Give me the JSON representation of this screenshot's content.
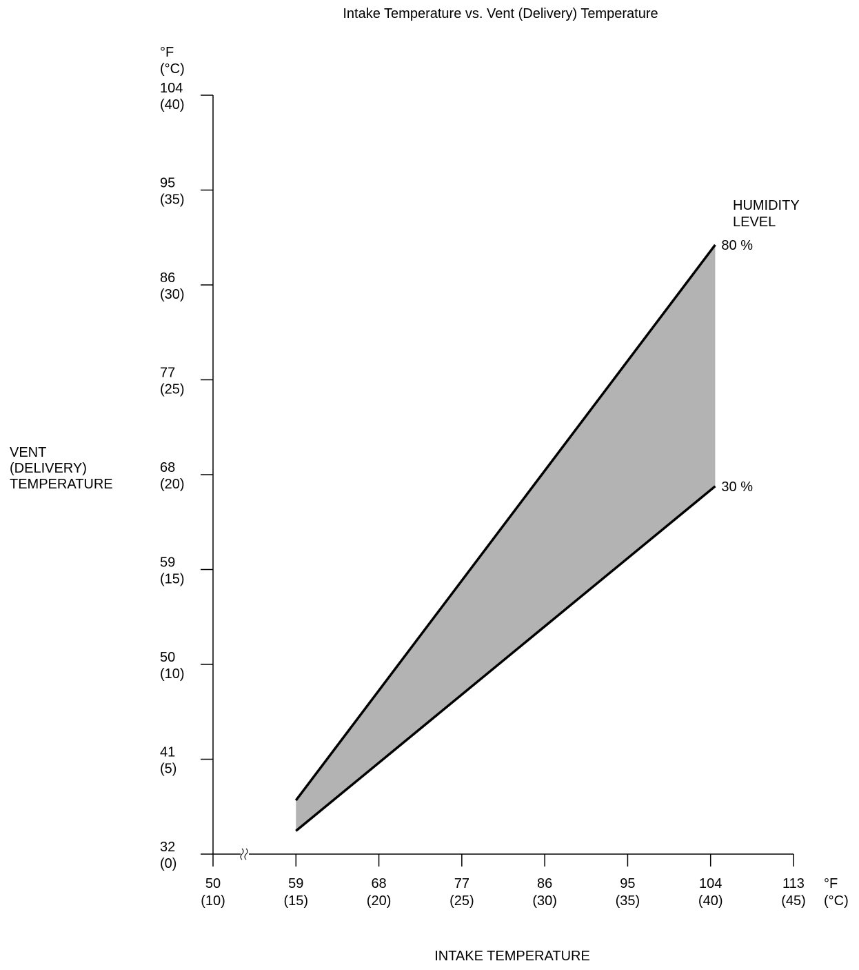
{
  "chart_data": {
    "type": "area",
    "title": "Intake Temperature vs. Vent (Delivery) Temperature",
    "xlabel": "INTAKE TEMPERATURE",
    "ylabel": [
      "VENT",
      "(DELIVERY)",
      "TEMPERATURE"
    ],
    "x_unit": [
      "°F",
      "(°C)"
    ],
    "y_unit": [
      "°F",
      "(°C)"
    ],
    "xlim": [
      50,
      113
    ],
    "ylim": [
      32,
      104
    ],
    "x_ticks": [
      {
        "value": 50,
        "f": "50",
        "c": "(10)"
      },
      {
        "value": 59,
        "f": "59",
        "c": "(15)"
      },
      {
        "value": 68,
        "f": "68",
        "c": "(20)"
      },
      {
        "value": 77,
        "f": "77",
        "c": "(25)"
      },
      {
        "value": 86,
        "f": "86",
        "c": "(30)"
      },
      {
        "value": 95,
        "f": "95",
        "c": "(35)"
      },
      {
        "value": 104,
        "f": "104",
        "c": "(40)"
      },
      {
        "value": 113,
        "f": "113",
        "c": "(45)"
      }
    ],
    "y_ticks": [
      {
        "value": 32,
        "f": "32",
        "c": "(0)"
      },
      {
        "value": 41,
        "f": "41",
        "c": "(5)"
      },
      {
        "value": 50,
        "f": "50",
        "c": "(10)"
      },
      {
        "value": 59,
        "f": "59",
        "c": "(15)"
      },
      {
        "value": 68,
        "f": "68",
        "c": "(20)"
      },
      {
        "value": 77,
        "f": "77",
        "c": "(25)"
      },
      {
        "value": 86,
        "f": "86",
        "c": "(30)"
      },
      {
        "value": 95,
        "f": "95",
        "c": "(35)"
      },
      {
        "value": 104,
        "f": "104",
        "c": "(40)"
      }
    ],
    "axis_break": "x",
    "legend_title": [
      "HUMIDITY",
      "LEVEL"
    ],
    "series": [
      {
        "name": "80 %",
        "x": [
          59,
          104.5
        ],
        "y": [
          37.1,
          89.8
        ]
      },
      {
        "name": "30 %",
        "x": [
          59,
          104.5
        ],
        "y": [
          34.2,
          66.9
        ]
      }
    ],
    "band_fill": "#b3b3b3",
    "line_color": "#000000",
    "grid": false
  }
}
